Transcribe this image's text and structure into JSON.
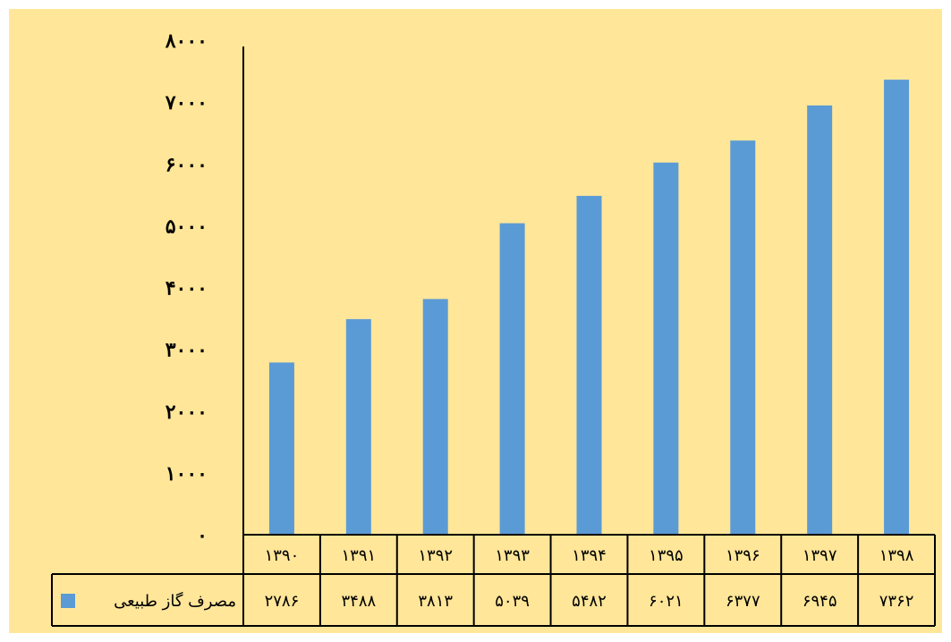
{
  "chart_data": {
    "type": "bar",
    "categories": [
      "۱۳۹۰",
      "۱۳۹۱",
      "۱۳۹۲",
      "۱۳۹۳",
      "۱۳۹۴",
      "۱۳۹۵",
      "۱۳۹۶",
      "۱۳۹۷",
      "۱۳۹۸"
    ],
    "series": [
      {
        "name": "مصرف گاز طبیعی",
        "values": [
          2786,
          3488,
          3813,
          5039,
          5482,
          6021,
          6377,
          6945,
          7362
        ],
        "value_labels": [
          "۲۷۸۶",
          "۳۴۸۸",
          "۳۸۱۳",
          "۵۰۳۹",
          "۵۴۸۲",
          "۶۰۲۱",
          "۶۳۷۷",
          "۶۹۴۵",
          "۷۳۶۲"
        ],
        "color": "#5b9bd5"
      }
    ],
    "ylim": [
      0,
      8000
    ],
    "yticks": [
      {
        "value": 0,
        "label": "۰"
      },
      {
        "value": 1000,
        "label": "۱۰۰۰"
      },
      {
        "value": 2000,
        "label": "۲۰۰۰"
      },
      {
        "value": 3000,
        "label": "۳۰۰۰"
      },
      {
        "value": 4000,
        "label": "۴۰۰۰"
      },
      {
        "value": 5000,
        "label": "۵۰۰۰"
      },
      {
        "value": 6000,
        "label": "۶۰۰۰"
      },
      {
        "value": 7000,
        "label": "۷۰۰۰"
      },
      {
        "value": 8000,
        "label": "۸۰۰۰"
      }
    ],
    "grid": false,
    "legend": "data-table",
    "plot_background": "#ffe699"
  }
}
